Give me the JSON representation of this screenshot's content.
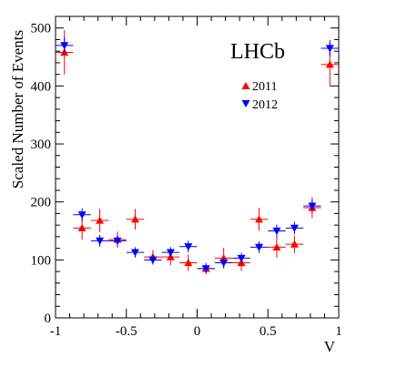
{
  "chart_data": {
    "type": "scatter",
    "title": "",
    "watermark": "LHCb",
    "xlabel": "V",
    "ylabel": "Scaled Number of Events",
    "xlim": [
      -1,
      1
    ],
    "ylim": [
      0,
      520
    ],
    "xticks": [
      -1,
      -0.5,
      0,
      0.5,
      1
    ],
    "xtick_labels": [
      "-1",
      "-0.5",
      "0",
      "0.5",
      "1"
    ],
    "yticks": [
      0,
      100,
      200,
      300,
      400,
      500
    ],
    "ytick_labels": [
      "0",
      "100",
      "200",
      "300",
      "400",
      "500"
    ],
    "grid": false,
    "legend_position": "top-right",
    "x_bin_halfwidth": 0.0625,
    "series": [
      {
        "name": "2011",
        "color": "#ff0000",
        "marker": "triangle-up",
        "x": [
          -0.9375,
          -0.8125,
          -0.6875,
          -0.5625,
          -0.4375,
          -0.3125,
          -0.1875,
          -0.0625,
          0.0625,
          0.1875,
          0.3125,
          0.4375,
          0.5625,
          0.6875,
          0.8125,
          0.9375
        ],
        "y": [
          458,
          155,
          168,
          135,
          170,
          105,
          105,
          95,
          85,
          103,
          95,
          170,
          122,
          127,
          190,
          437
        ],
        "err": [
          38,
          20,
          20,
          14,
          18,
          12,
          14,
          14,
          10,
          18,
          14,
          20,
          18,
          15,
          18,
          38
        ]
      },
      {
        "name": "2012",
        "color": "#0000ff",
        "marker": "triangle-down",
        "x": [
          -0.9375,
          -0.8125,
          -0.6875,
          -0.5625,
          -0.4375,
          -0.3125,
          -0.1875,
          -0.0625,
          0.0625,
          0.1875,
          0.3125,
          0.4375,
          0.5625,
          0.6875,
          0.8125,
          0.9375
        ],
        "y": [
          470,
          178,
          133,
          133,
          113,
          100,
          113,
          123,
          85,
          95,
          103,
          122,
          150,
          155,
          193,
          465
        ],
        "err": [
          14,
          11,
          10,
          10,
          9,
          8,
          9,
          10,
          8,
          8,
          9,
          10,
          11,
          11,
          11,
          14
        ]
      }
    ]
  }
}
